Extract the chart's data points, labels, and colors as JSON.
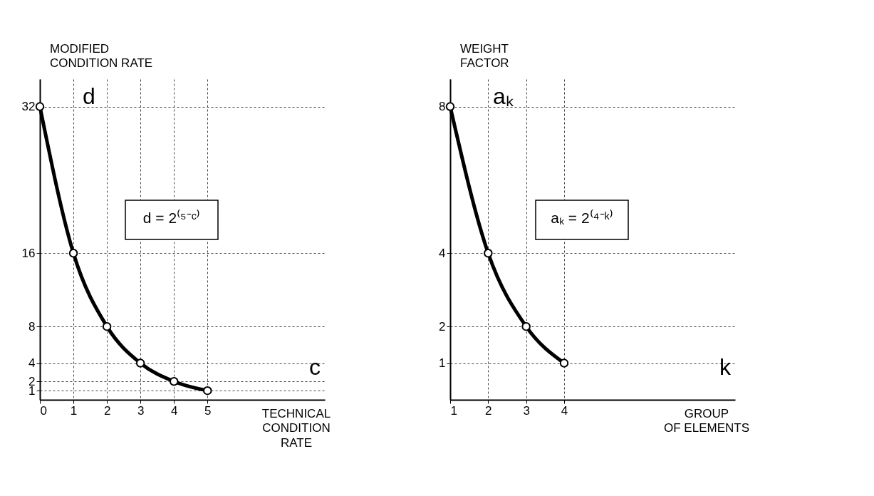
{
  "chart_data": [
    {
      "type": "line",
      "ylabel": "MODIFIED\nCONDITION RATE",
      "xlabel": "TECHNICAL\nCONDITION\nRATE",
      "annotations": [
        "d",
        "d = 2⁽⁵⁻ᶜ⁾",
        "c"
      ],
      "x": [
        0,
        1,
        2,
        3,
        4,
        5
      ],
      "series": [
        {
          "color": "#000000",
          "values": [
            32,
            16,
            8,
            4,
            2,
            1
          ]
        }
      ],
      "xlim": [
        0,
        8.5
      ],
      "xticks": [
        0,
        1,
        2,
        3,
        4,
        5
      ],
      "ylim": [
        0,
        35
      ],
      "yticks": [
        1,
        2,
        4,
        8,
        16,
        32
      ],
      "grid": true,
      "marker": "circle",
      "line_style": "solid"
    },
    {
      "type": "line",
      "ylabel": "WEIGHT\nFACTOR",
      "xlabel": "GROUP\nOF ELEMENTS",
      "annotations": [
        "aₖ",
        "aₖ = 2⁽⁴⁻ᵏ⁾",
        "k"
      ],
      "x": [
        1,
        2,
        3,
        4
      ],
      "series": [
        {
          "color": "#000000",
          "values": [
            8,
            4,
            2,
            1
          ]
        }
      ],
      "xlim": [
        1,
        8.5
      ],
      "xticks": [
        1,
        2,
        3,
        4
      ],
      "ylim": [
        0,
        8.75
      ],
      "yticks": [
        1,
        2,
        4,
        8
      ],
      "grid": true,
      "marker": "circle",
      "line_style": "solid"
    }
  ]
}
